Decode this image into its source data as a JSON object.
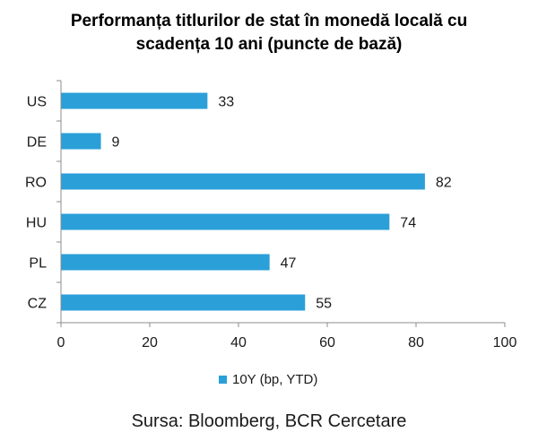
{
  "chart_data": {
    "type": "bar",
    "orientation": "horizontal",
    "title": "Performanța titlurilor de stat în monedă locală cu scadența 10 ani (puncte de bază)",
    "title_lines": [
      "Performanța titlurilor de stat în monedă locală cu",
      "scadența 10 ani (puncte de bază)"
    ],
    "categories": [
      "US",
      "DE",
      "RO",
      "HU",
      "PL",
      "CZ"
    ],
    "series": [
      {
        "name": "10Y (bp, YTD)",
        "values": [
          33,
          9,
          82,
          74,
          47,
          55
        ],
        "color": "#2b9fd8"
      }
    ],
    "xlim": [
      0,
      100
    ],
    "xticks": [
      "0",
      "20",
      "40",
      "60",
      "80",
      "100"
    ],
    "xtick_values": [
      0,
      20,
      40,
      60,
      80,
      100
    ],
    "xlabel": "",
    "ylabel": "",
    "grid": false,
    "legend_position": "bottom",
    "data_labels": true
  },
  "source": "Sursa: Bloomberg, BCR Cercetare",
  "colors": {
    "bar": "#2b9fd8",
    "axis": "#8c8c8c",
    "text": "#1a1a1a"
  }
}
